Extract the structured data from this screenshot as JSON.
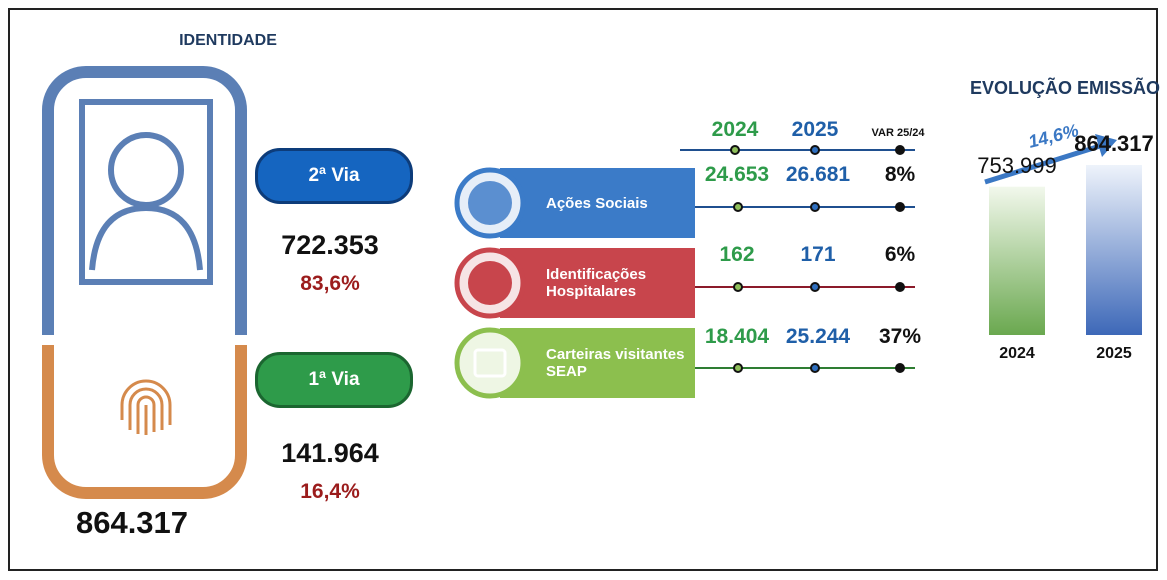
{
  "identity": {
    "title": "IDENTIDADE",
    "total": "864.317",
    "second_copy": {
      "label": "2ª Via",
      "count": "722.353",
      "share": "83,6%"
    },
    "first_copy": {
      "label": "1ª Via",
      "count": "141.964",
      "share": "16,4%"
    }
  },
  "programs": {
    "headers": [
      "2024",
      "2025",
      "VAR 25/24"
    ],
    "rows": [
      {
        "name": "Ações Sociais",
        "v2024": "24.653",
        "v2025": "26.681",
        "var": "8%"
      },
      {
        "name": "Identificações Hospitalares",
        "v2024": "162",
        "v2025": "171",
        "var": "6%"
      },
      {
        "name": "Carteiras visitantes SEAP",
        "v2024": "18.404",
        "v2025": "25.244",
        "var": "37%"
      }
    ]
  },
  "evolution": {
    "title": "EVOLUÇÃO EMISSÃO",
    "growth": "14,6%",
    "categories": [
      "2024",
      "2025"
    ],
    "values": [
      753999,
      864317
    ],
    "value_labels": [
      "753.999",
      "864.317"
    ]
  }
}
